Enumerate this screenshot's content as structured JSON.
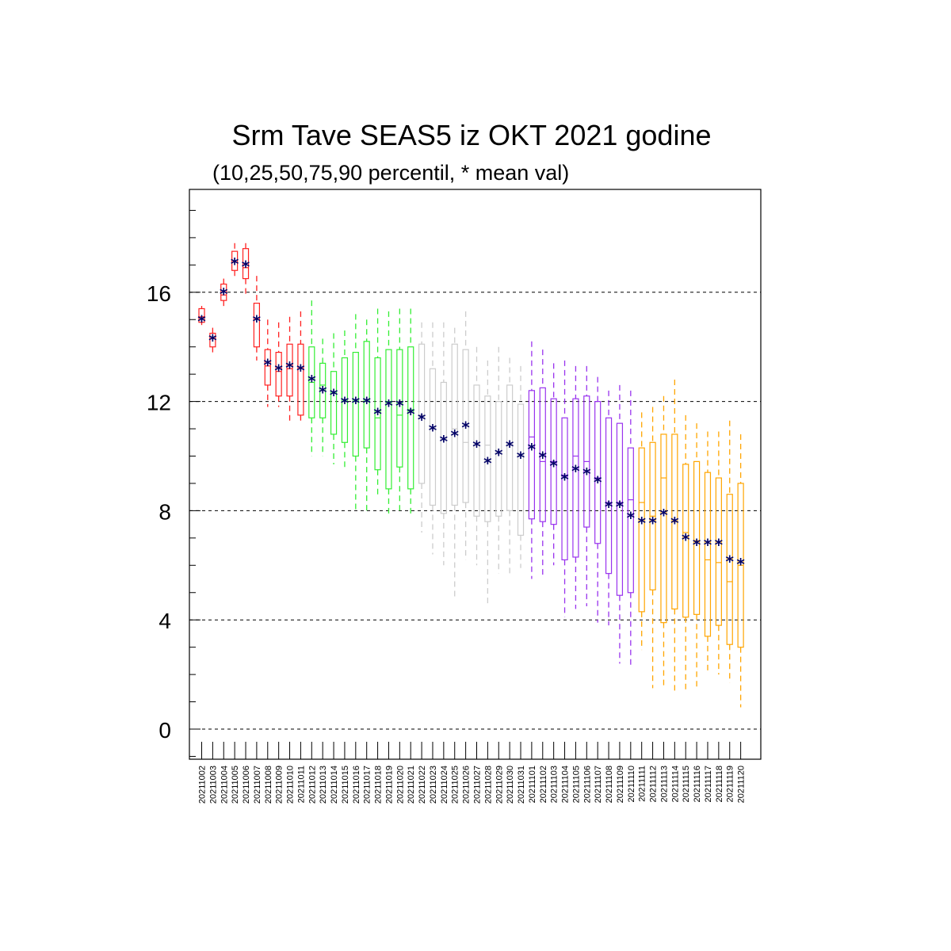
{
  "chart_data": {
    "type": "boxplot",
    "title": "Srm Tave SEAS5 iz OKT 2021 godine",
    "subtitle": "(10,25,50,75,90 percentil, * mean val)",
    "ylim": [
      -1.1,
      19.8
    ],
    "yticks": [
      0,
      4,
      8,
      12,
      16
    ],
    "grid": "dashed horizontal lines at major y ticks",
    "colors": {
      "red": "#ff2020",
      "green": "#33ee33",
      "gray": "#cccccc",
      "purple": "#9933ee",
      "orange": "#ffa500",
      "mean_marker": "#000066",
      "grid": "#000000"
    },
    "boxes": [
      {
        "date": "20211002",
        "color": "red",
        "p10": 14.8,
        "p25": 14.9,
        "p50": 15.1,
        "p75": 15.4,
        "p90": 15.5,
        "mean": 15.0
      },
      {
        "date": "20211003",
        "color": "red",
        "p10": 13.8,
        "p25": 14.0,
        "p50": 14.3,
        "p75": 14.5,
        "p90": 14.7,
        "mean": 14.3
      },
      {
        "date": "20211004",
        "color": "red",
        "p10": 15.4,
        "p25": 15.7,
        "p50": 15.9,
        "p75": 16.3,
        "p90": 16.5,
        "mean": 16.0
      },
      {
        "date": "20211005",
        "color": "red",
        "p10": 16.5,
        "p25": 16.8,
        "p50": 17.1,
        "p75": 17.5,
        "p90": 17.8,
        "mean": 17.1
      },
      {
        "date": "20211006",
        "color": "red",
        "p10": 15.9,
        "p25": 16.5,
        "p50": 16.9,
        "p75": 17.6,
        "p90": 17.8,
        "mean": 17.0
      },
      {
        "date": "20211007",
        "color": "red",
        "p10": 13.5,
        "p25": 14.0,
        "p50": 15.0,
        "p75": 15.6,
        "p90": 16.6,
        "mean": 15.0
      },
      {
        "date": "20211008",
        "color": "red",
        "p10": 11.8,
        "p25": 12.6,
        "p50": 13.3,
        "p75": 13.9,
        "p90": 15.0,
        "mean": 13.4
      },
      {
        "date": "20211009",
        "color": "red",
        "p10": 11.8,
        "p25": 12.2,
        "p50": 13.1,
        "p75": 13.8,
        "p90": 14.9,
        "mean": 13.2
      },
      {
        "date": "20211010",
        "color": "red",
        "p10": 11.2,
        "p25": 12.2,
        "p50": 13.2,
        "p75": 14.1,
        "p90": 15.1,
        "mean": 13.3
      },
      {
        "date": "20211011",
        "color": "red",
        "p10": 11.3,
        "p25": 11.5,
        "p50": 13.2,
        "p75": 14.1,
        "p90": 15.3,
        "mean": 13.2
      },
      {
        "date": "20211012",
        "color": "green",
        "p10": 10.0,
        "p25": 11.4,
        "p50": 12.7,
        "p75": 14.0,
        "p90": 15.7,
        "mean": 12.8
      },
      {
        "date": "20211013",
        "color": "green",
        "p10": 10.0,
        "p25": 11.4,
        "p50": 12.6,
        "p75": 13.4,
        "p90": 14.3,
        "mean": 12.4
      },
      {
        "date": "20211014",
        "color": "green",
        "p10": 9.7,
        "p25": 10.8,
        "p50": 12.3,
        "p75": 13.1,
        "p90": 14.5,
        "mean": 12.3
      },
      {
        "date": "20211015",
        "color": "green",
        "p10": 9.6,
        "p25": 10.5,
        "p50": 12.0,
        "p75": 13.6,
        "p90": 14.6,
        "mean": 12.0
      },
      {
        "date": "20211016",
        "color": "green",
        "p10": 8.0,
        "p25": 10.0,
        "p50": 12.0,
        "p75": 13.8,
        "p90": 15.2,
        "mean": 12.0
      },
      {
        "date": "20211017",
        "color": "green",
        "p10": 8.0,
        "p25": 10.3,
        "p50": 12.0,
        "p75": 14.2,
        "p90": 15.0,
        "mean": 12.0
      },
      {
        "date": "20211018",
        "color": "green",
        "p10": 8.6,
        "p25": 9.5,
        "p50": 11.4,
        "p75": 13.6,
        "p90": 15.4,
        "mean": 11.6
      },
      {
        "date": "20211019",
        "color": "green",
        "p10": 7.8,
        "p25": 8.8,
        "p50": 12.0,
        "p75": 13.9,
        "p90": 15.3,
        "mean": 11.9
      },
      {
        "date": "20211020",
        "color": "green",
        "p10": 8.0,
        "p25": 9.6,
        "p50": 11.5,
        "p75": 13.9,
        "p90": 15.4,
        "mean": 11.9
      },
      {
        "date": "20211021",
        "color": "green",
        "p10": 7.9,
        "p25": 8.8,
        "p50": 11.7,
        "p75": 14.0,
        "p90": 15.4,
        "mean": 11.6
      },
      {
        "date": "20211022",
        "color": "gray",
        "p10": 7.2,
        "p25": 9.0,
        "p50": 11.5,
        "p75": 14.1,
        "p90": 14.9,
        "mean": 11.4
      },
      {
        "date": "20211023",
        "color": "gray",
        "p10": 6.4,
        "p25": 8.2,
        "p50": 11.0,
        "p75": 13.2,
        "p90": 14.9,
        "mean": 11.0
      },
      {
        "date": "20211024",
        "color": "gray",
        "p10": 6.0,
        "p25": 7.9,
        "p50": 10.6,
        "p75": 12.7,
        "p90": 14.9,
        "mean": 10.6
      },
      {
        "date": "20211025",
        "color": "gray",
        "p10": 4.8,
        "p25": 8.2,
        "p50": 11.0,
        "p75": 14.1,
        "p90": 14.7,
        "mean": 10.8
      },
      {
        "date": "20211026",
        "color": "gray",
        "p10": 6.2,
        "p25": 8.3,
        "p50": 10.5,
        "p75": 13.9,
        "p90": 15.3,
        "mean": 11.1
      },
      {
        "date": "20211027",
        "color": "gray",
        "p10": 6.0,
        "p25": 7.8,
        "p50": 10.4,
        "p75": 12.6,
        "p90": 14.0,
        "mean": 10.4
      },
      {
        "date": "20211028",
        "color": "gray",
        "p10": 4.6,
        "p25": 7.6,
        "p50": 10.4,
        "p75": 12.2,
        "p90": 13.5,
        "mean": 9.8
      },
      {
        "date": "20211029",
        "color": "gray",
        "p10": 5.7,
        "p25": 7.8,
        "p50": 10.1,
        "p75": 12.0,
        "p90": 14.0,
        "mean": 10.1
      },
      {
        "date": "20211030",
        "color": "gray",
        "p10": 5.7,
        "p25": 8.0,
        "p50": 10.4,
        "p75": 12.6,
        "p90": 13.6,
        "mean": 10.4
      },
      {
        "date": "20211031",
        "color": "gray",
        "p10": 5.9,
        "p25": 7.1,
        "p50": 10.0,
        "p75": 11.9,
        "p90": 13.3,
        "mean": 10.0
      },
      {
        "date": "20211101",
        "color": "purple",
        "p10": 5.5,
        "p25": 7.7,
        "p50": 10.7,
        "p75": 12.4,
        "p90": 14.2,
        "mean": 10.3
      },
      {
        "date": "20211102",
        "color": "purple",
        "p10": 5.6,
        "p25": 7.6,
        "p50": 9.8,
        "p75": 12.5,
        "p90": 13.9,
        "mean": 10.0
      },
      {
        "date": "20211103",
        "color": "purple",
        "p10": 6.0,
        "p25": 7.5,
        "p50": 9.8,
        "p75": 12.1,
        "p90": 13.4,
        "mean": 9.7
      },
      {
        "date": "20211104",
        "color": "purple",
        "p10": 4.1,
        "p25": 6.2,
        "p50": 9.3,
        "p75": 11.4,
        "p90": 13.5,
        "mean": 9.2
      },
      {
        "date": "20211105",
        "color": "purple",
        "p10": 4.4,
        "p25": 6.3,
        "p50": 10.0,
        "p75": 12.1,
        "p90": 13.3,
        "mean": 9.5
      },
      {
        "date": "20211106",
        "color": "purple",
        "p10": 4.5,
        "p25": 7.4,
        "p50": 9.8,
        "p75": 12.2,
        "p90": 13.3,
        "mean": 9.4
      },
      {
        "date": "20211107",
        "color": "purple",
        "p10": 3.9,
        "p25": 6.8,
        "p50": 9.2,
        "p75": 12.0,
        "p90": 12.9,
        "mean": 9.1
      },
      {
        "date": "20211108",
        "color": "purple",
        "p10": 3.8,
        "p25": 5.7,
        "p50": 8.3,
        "p75": 11.4,
        "p90": 12.4,
        "mean": 8.2
      },
      {
        "date": "20211109",
        "color": "purple",
        "p10": 2.4,
        "p25": 4.9,
        "p50": 8.3,
        "p75": 11.2,
        "p90": 12.6,
        "mean": 8.2
      },
      {
        "date": "20211110",
        "color": "purple",
        "p10": 2.3,
        "p25": 5.0,
        "p50": 8.4,
        "p75": 10.3,
        "p90": 12.4,
        "mean": 7.8
      },
      {
        "date": "20211111",
        "color": "orange",
        "p10": 2.9,
        "p25": 4.3,
        "p50": 8.3,
        "p75": 10.3,
        "p90": 11.6,
        "mean": 7.6
      },
      {
        "date": "20211112",
        "color": "orange",
        "p10": 1.5,
        "p25": 5.1,
        "p50": 7.8,
        "p75": 10.5,
        "p90": 11.8,
        "mean": 7.6
      },
      {
        "date": "20211113",
        "color": "orange",
        "p10": 1.5,
        "p25": 3.9,
        "p50": 9.2,
        "p75": 10.8,
        "p90": 12.2,
        "mean": 7.9
      },
      {
        "date": "20211114",
        "color": "orange",
        "p10": 1.4,
        "p25": 4.4,
        "p50": 7.6,
        "p75": 10.8,
        "p90": 12.8,
        "mean": 7.6
      },
      {
        "date": "20211115",
        "color": "orange",
        "p10": 1.4,
        "p25": 4.1,
        "p50": 7.2,
        "p75": 9.7,
        "p90": 11.5,
        "mean": 7.0
      },
      {
        "date": "20211116",
        "color": "orange",
        "p10": 1.5,
        "p25": 4.2,
        "p50": 6.9,
        "p75": 9.8,
        "p90": 11.2,
        "mean": 6.8
      },
      {
        "date": "20211117",
        "color": "orange",
        "p10": 2.1,
        "p25": 3.4,
        "p50": 6.2,
        "p75": 9.4,
        "p90": 10.9,
        "mean": 6.8
      },
      {
        "date": "20211118",
        "color": "orange",
        "p10": 2.0,
        "p25": 3.8,
        "p50": 6.1,
        "p75": 9.2,
        "p90": 10.9,
        "mean": 6.8
      },
      {
        "date": "20211119",
        "color": "orange",
        "p10": 1.7,
        "p25": 3.1,
        "p50": 5.4,
        "p75": 8.6,
        "p90": 11.3,
        "mean": 6.2
      },
      {
        "date": "20211120",
        "color": "orange",
        "p10": 0.8,
        "p25": 3.0,
        "p50": 6.0,
        "p75": 9.0,
        "p90": 10.8,
        "mean": 6.1
      }
    ]
  }
}
